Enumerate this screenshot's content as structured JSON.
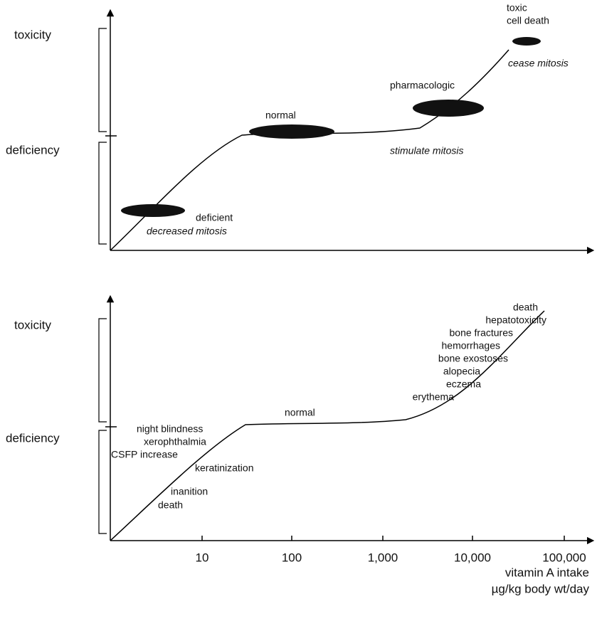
{
  "top": {
    "y_labels": [
      "toxicity",
      "deficiency"
    ],
    "annotations": {
      "toxic": "toxic",
      "cell_death": "cell death",
      "cease": "cease mitosis",
      "pharmacologic": "pharmacologic",
      "stimulate": "stimulate mitosis",
      "normal": "normal",
      "deficient": "deficient",
      "decreased": "decreased mitosis"
    }
  },
  "bottom": {
    "y_labels": [
      "toxicity",
      "deficiency"
    ],
    "toxic_effects": [
      "death",
      "hepatotoxicity",
      "bone fractures",
      "hemorrhages",
      "bone exostoses",
      "alopecia",
      "eczema",
      "erythema"
    ],
    "deficiency_effects": [
      "night blindness",
      "xerophthalmia",
      "CSFP increase",
      "keratinization",
      "inanition",
      "death"
    ],
    "normal": "normal",
    "x_ticks": [
      "10",
      "100",
      "1,000",
      "10,000",
      "100,000"
    ],
    "x_label": [
      "vitamin A intake",
      "µg/kg body wt/day"
    ]
  }
}
